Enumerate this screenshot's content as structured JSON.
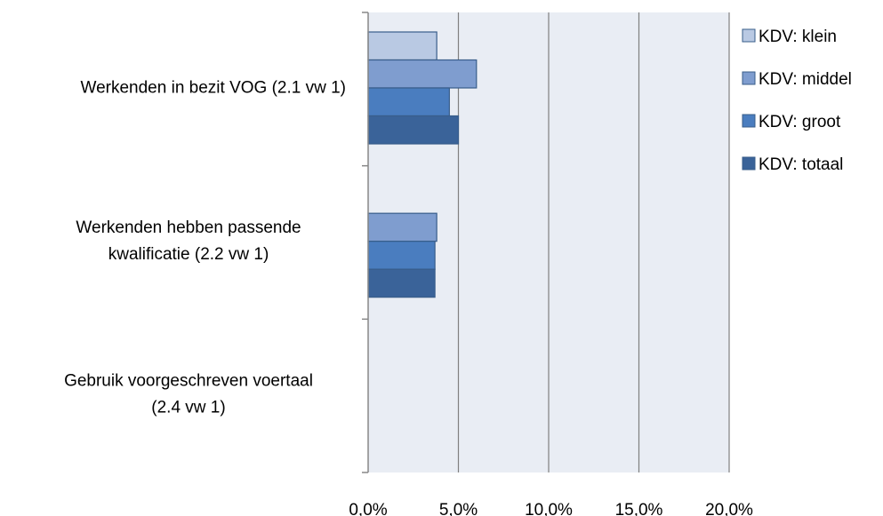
{
  "chart_data": {
    "type": "bar",
    "orientation": "horizontal",
    "categories": [
      [
        "Werkenden in bezit VOG (2.1 vw 1)"
      ],
      [
        "Werkenden hebben passende",
        "kwalificatie (2.2 vw 1)"
      ],
      [
        "Gebruik voorgeschreven voertaal",
        "(2.4 vw 1)"
      ]
    ],
    "series": [
      {
        "name": "KDV: klein",
        "color": "#b9c9e3",
        "values": [
          3.8,
          null,
          null
        ]
      },
      {
        "name": "KDV: middel",
        "color": "#7f9dcf",
        "values": [
          6.0,
          3.8,
          null
        ]
      },
      {
        "name": "KDV: groot",
        "color": "#4a7dbf",
        "values": [
          4.5,
          3.7,
          null
        ]
      },
      {
        "name": "KDV: totaal",
        "color": "#3a6399",
        "values": [
          5.0,
          3.7,
          null
        ]
      }
    ],
    "xlim": [
      0,
      20
    ],
    "x_ticks": [
      0,
      5,
      10,
      15,
      20
    ],
    "x_tick_labels": [
      "0,0%",
      "5,0%",
      "10,0%",
      "15,0%",
      "20,0%"
    ],
    "grid": "vertical",
    "legend_position": "right",
    "plot_background": "#e9edf4",
    "gridline_color": "#808080",
    "bar_border_color": "#385d8a"
  }
}
